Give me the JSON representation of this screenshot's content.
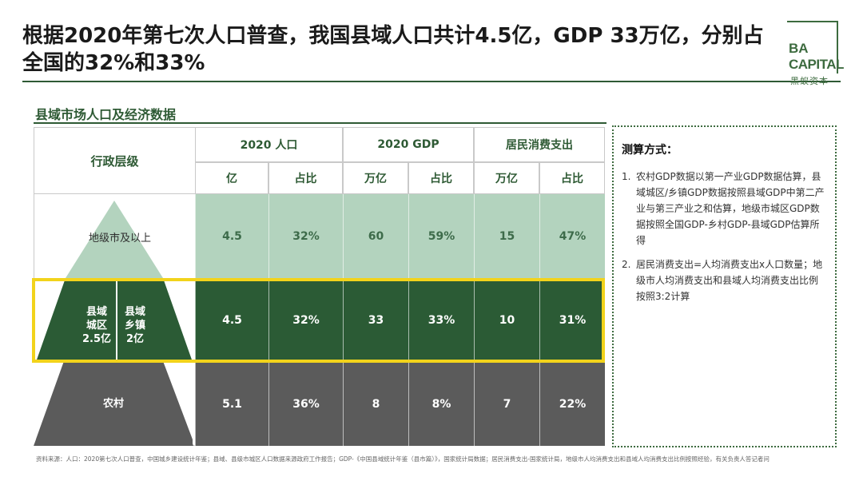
{
  "title": "根据2020年第七次人口普查，我国县域人口共计4.5亿，GDP 33万亿，分别占全国的32%和33%",
  "logo": {
    "line1": "BA",
    "line2": "CAPITAL",
    "line3": "黑蚁资本"
  },
  "subtitle": "县域市场人口及经济数据",
  "table": {
    "level_header": "行政层级",
    "groups": [
      "2020 人口",
      "2020 GDP",
      "居民消费支出"
    ],
    "subheaders": [
      "亿",
      "占比",
      "万亿",
      "占比",
      "万亿",
      "占比"
    ],
    "rows": [
      {
        "label": "地级市及以上",
        "values": [
          "4.5",
          "32%",
          "60",
          "59%",
          "15",
          "47%"
        ]
      },
      {
        "label_left": "县域\n城区\n2.5亿",
        "label_right": "县域\n乡镇\n2亿",
        "values": [
          "4.5",
          "32%",
          "33",
          "33%",
          "10",
          "31%"
        ]
      },
      {
        "label": "农村",
        "values": [
          "5.1",
          "36%",
          "8",
          "8%",
          "7",
          "22%"
        ]
      }
    ]
  },
  "method": {
    "title": "测算方式：",
    "items": [
      {
        "n": "1.",
        "text": "农村GDP数据以第一产业GDP数据估算，县域城区/乡镇GDP数据按照县域GDP中第二产业与第三产业之和估算，地级市城区GDP数据按照全国GDP-乡村GDP-县域GDP估算所得"
      },
      {
        "n": "2.",
        "text": "居民消费支出=人均消费支出x人口数量；地级市人均消费支出和县域人均消费支出比例按照3:2计算"
      }
    ]
  },
  "source": "资料来源：人口：2020第七次人口普查，中国城乡建设统计年鉴；县域、县级市城区人口数据来源政府工作报告；GDP-《中国县域统计年鉴（县市篇）》，国家统计局数据；居民消费支出-国家统计局，地级市人均消费支出和县域人均消费支出比例按照经验，有关负责人答记者问",
  "colors": {
    "green_dark": "#2b5b35",
    "green_light": "#b3d3be",
    "gray": "#5b5b5b",
    "highlight": "#f2d31b"
  }
}
